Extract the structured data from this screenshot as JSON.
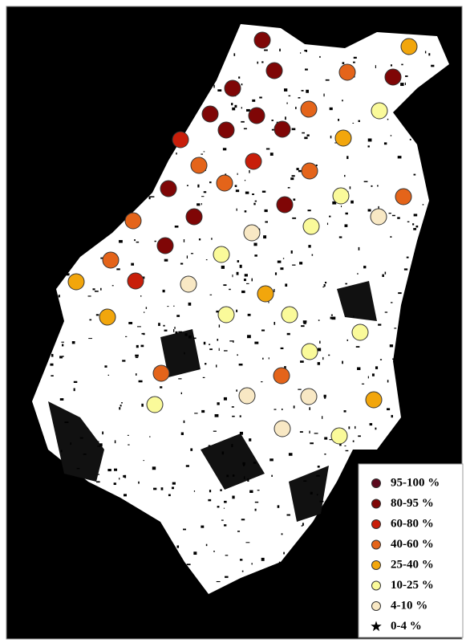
{
  "legend": {
    "items": [
      {
        "label": "95-100 %",
        "color": "#5c0a1e",
        "marker": "circle"
      },
      {
        "label": "80-95 %",
        "color": "#7f0606",
        "marker": "circle"
      },
      {
        "label": "60-80 %",
        "color": "#c81e0a",
        "marker": "circle"
      },
      {
        "label": "40-60 %",
        "color": "#e4641a",
        "marker": "circle"
      },
      {
        "label": "25-40 %",
        "color": "#f2a60c",
        "marker": "circle"
      },
      {
        "label": "10-25 %",
        "color": "#fafa9a",
        "marker": "circle"
      },
      {
        "label": "4-10 %",
        "color": "#f8e8c4",
        "marker": "circle"
      },
      {
        "label": "0-4 %",
        "color": "#000000",
        "marker": "star"
      }
    ]
  }
}
